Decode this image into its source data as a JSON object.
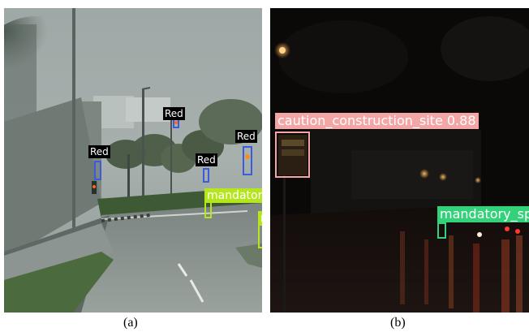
{
  "colors": {
    "red_box": "#3b5bdb",
    "red_label_bg": "#000000",
    "red_label_text": "#ffffff",
    "mandatory_box": "#b5e61d",
    "mandatory_label_bg": "#b5e61d",
    "mandatory_label_text": "#ffffff",
    "caution_box": "#f4a6a6",
    "caution_label_bg": "#f4a6a6",
    "mandatory_b_box": "#33d17a",
    "mandatory_b_label_bg": "#33d17a"
  },
  "panel_a": {
    "caption": "(a)",
    "labels": {
      "red_1": "Red",
      "red_2": "Red",
      "red_3": "Red",
      "red_4": "Red",
      "mandatory": "mandator",
      "mandatory_cut": "n"
    }
  },
  "panel_b": {
    "caption": "(b)",
    "labels": {
      "caution": "caution_construction_site 0.88",
      "mandatory": "mandatory_sp"
    }
  }
}
